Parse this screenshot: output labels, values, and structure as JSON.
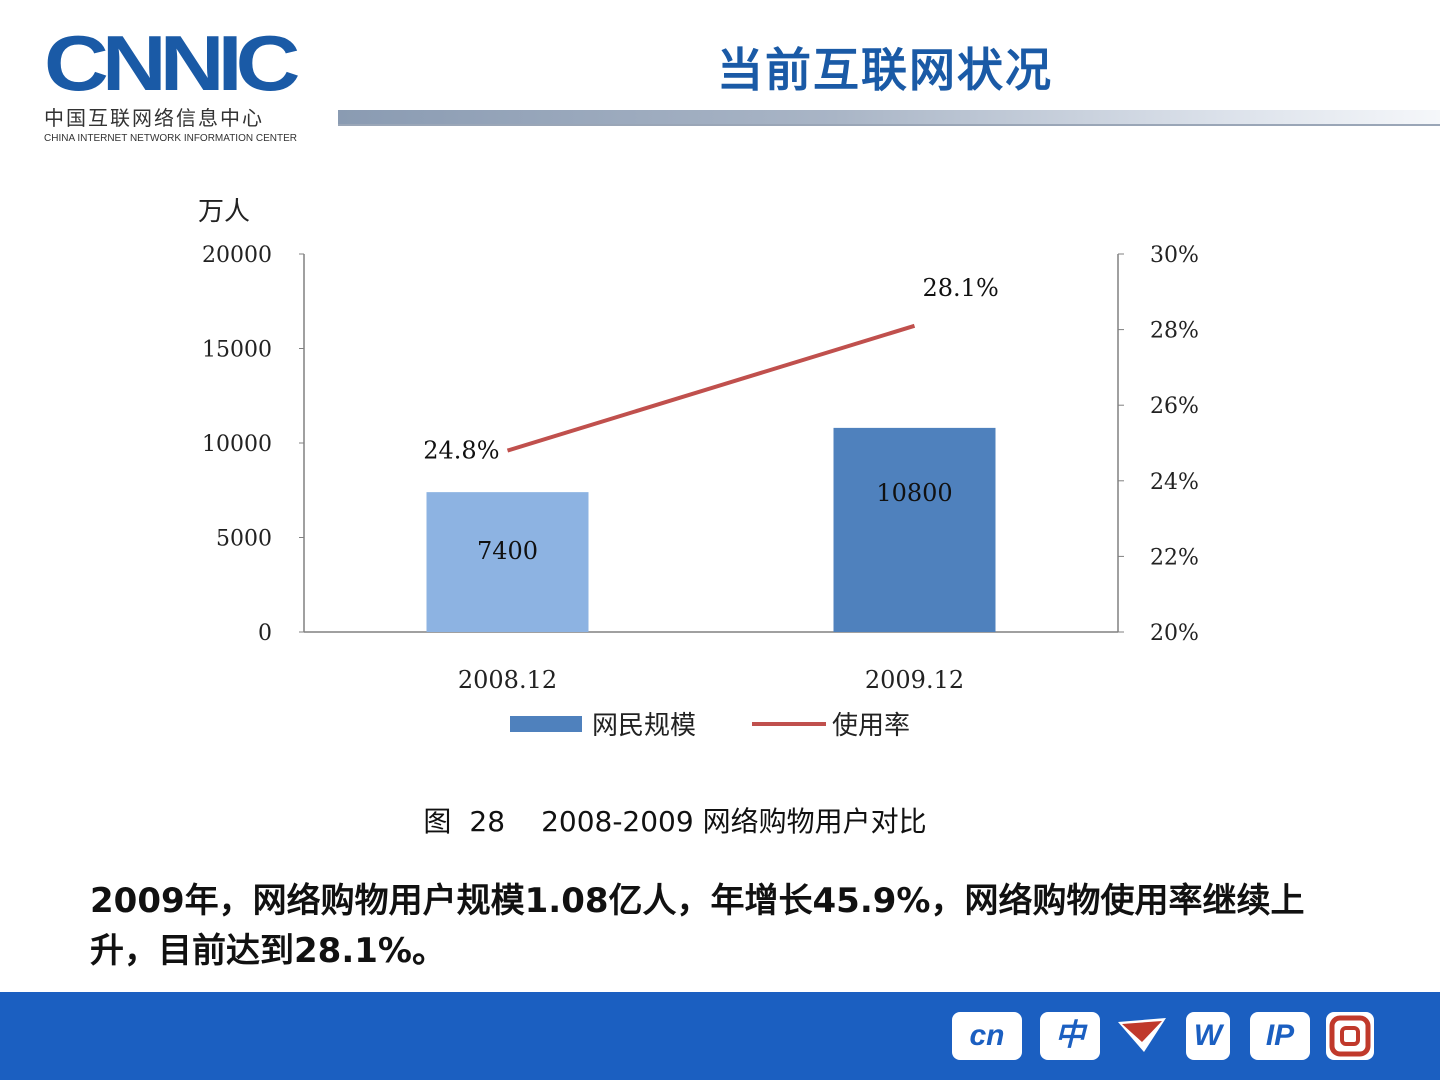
{
  "header": {
    "logo_text": "CNNIC",
    "logo_cn": "中国互联网络信息中心",
    "logo_en": "CHINA INTERNET NETWORK INFORMATION CENTER",
    "title": "当前互联网状况"
  },
  "chart_data": {
    "type": "bar",
    "title": "",
    "y_left_label": "万人",
    "categories": [
      "2008.12",
      "2009.12"
    ],
    "series": [
      {
        "name": "网民规模",
        "type": "bar",
        "values": [
          7400,
          10800
        ],
        "colors": [
          "#8db3e2",
          "#4f81bd"
        ],
        "data_labels": [
          "7400",
          "10800"
        ]
      },
      {
        "name": "使用率",
        "type": "line",
        "axis": "right",
        "values": [
          24.8,
          28.1
        ],
        "color": "#c0504d",
        "data_labels": [
          "24.8%",
          "28.1%"
        ]
      }
    ],
    "y_left": {
      "min": 0,
      "max": 20000,
      "ticks": [
        "0",
        "5000",
        "10000",
        "15000",
        "20000"
      ]
    },
    "y_right": {
      "min": 20,
      "max": 30,
      "ticks": [
        "20%",
        "22%",
        "24%",
        "26%",
        "28%",
        "30%"
      ]
    },
    "legend_position": "bottom",
    "grid": false
  },
  "caption": {
    "label": "图",
    "number": "28",
    "text": "2008-2009 网络购物用户对比"
  },
  "body_text": "2009年，网络购物用户规模1.08亿人，年增长45.9%，网络购物使用率继续上升，目前达到28.1%。",
  "footer": {
    "icons": [
      "cn-logo-icon",
      "zhong-logo-icon",
      "email-logo-icon",
      "www-logo-icon",
      "ip-as-logo-icon",
      "copyright-logo-icon"
    ]
  }
}
